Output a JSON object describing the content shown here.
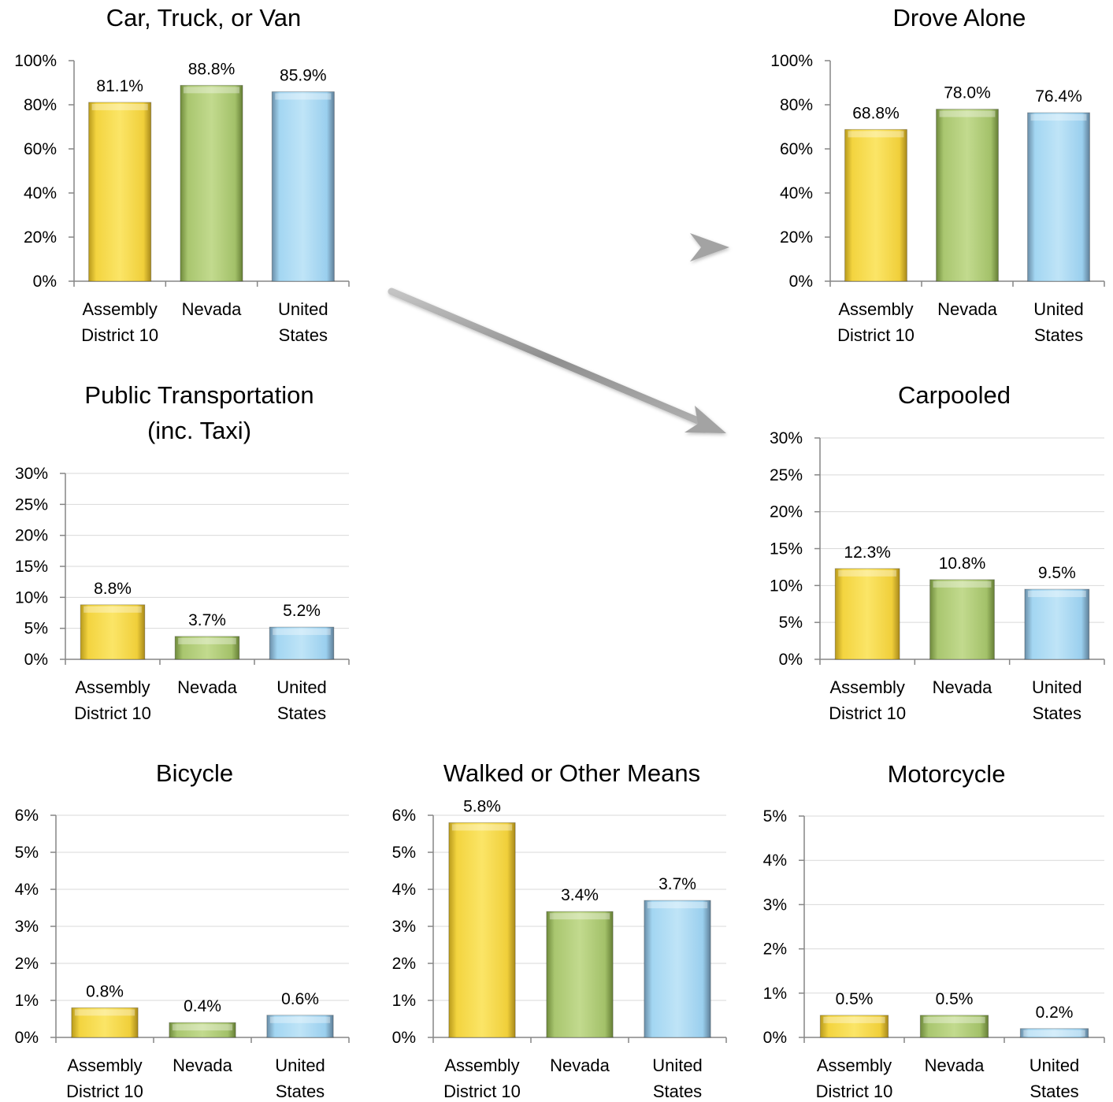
{
  "colors": {
    "yellow": "#f6d33b",
    "green": "#a6c46a",
    "blue": "#9bd1ef",
    "arrow": "#9a9a9a",
    "grid": "#d9d9d9",
    "axis": "#868686"
  },
  "chart_data": [
    {
      "type": "bar",
      "title": [
        "Car, Truck, or Van"
      ],
      "categories": [
        [
          "Assembly",
          "District 10"
        ],
        [
          "Nevada"
        ],
        [
          "United",
          "States"
        ]
      ],
      "values": [
        81.1,
        88.8,
        85.9
      ],
      "value_labels": [
        "81.1%",
        "88.8%",
        "85.9%"
      ],
      "yticks": [
        "0%",
        "20%",
        "40%",
        "60%",
        "80%",
        "100%"
      ],
      "ylim": [
        0,
        100
      ],
      "grid": false
    },
    {
      "type": "bar",
      "title": [
        "Drove Alone"
      ],
      "categories": [
        [
          "Assembly",
          "District 10"
        ],
        [
          "Nevada"
        ],
        [
          "United",
          "States"
        ]
      ],
      "values": [
        68.8,
        78.0,
        76.4
      ],
      "value_labels": [
        "68.8%",
        "78.0%",
        "76.4%"
      ],
      "yticks": [
        "0%",
        "20%",
        "40%",
        "60%",
        "80%",
        "100%"
      ],
      "ylim": [
        0,
        100
      ],
      "grid": false
    },
    {
      "type": "bar",
      "title": [
        "Public Transportation",
        "(inc. Taxi)"
      ],
      "categories": [
        [
          "Assembly",
          "District 10"
        ],
        [
          "Nevada"
        ],
        [
          "United",
          "States"
        ]
      ],
      "values": [
        8.8,
        3.7,
        5.2
      ],
      "value_labels": [
        "8.8%",
        "3.7%",
        "5.2%"
      ],
      "yticks": [
        "0%",
        "5%",
        "10%",
        "15%",
        "20%",
        "25%",
        "30%"
      ],
      "ylim": [
        0,
        30
      ],
      "grid": true
    },
    {
      "type": "bar",
      "title": [
        "Carpooled"
      ],
      "categories": [
        [
          "Assembly",
          "District 10"
        ],
        [
          "Nevada"
        ],
        [
          "United",
          "States"
        ]
      ],
      "values": [
        12.3,
        10.8,
        9.5
      ],
      "value_labels": [
        "12.3%",
        "10.8%",
        "9.5%"
      ],
      "yticks": [
        "0%",
        "5%",
        "10%",
        "15%",
        "20%",
        "25%",
        "30%"
      ],
      "ylim": [
        0,
        30
      ],
      "grid": true
    },
    {
      "type": "bar",
      "title": [
        "Bicycle"
      ],
      "categories": [
        [
          "Assembly",
          "District 10"
        ],
        [
          "Nevada"
        ],
        [
          "United",
          "States"
        ]
      ],
      "values": [
        0.8,
        0.4,
        0.6
      ],
      "value_labels": [
        "0.8%",
        "0.4%",
        "0.6%"
      ],
      "yticks": [
        "0%",
        "1%",
        "2%",
        "3%",
        "4%",
        "5%",
        "6%"
      ],
      "ylim": [
        0,
        6
      ],
      "grid": true
    },
    {
      "type": "bar",
      "title": [
        "Walked or Other Means"
      ],
      "categories": [
        [
          "Assembly",
          "District 10"
        ],
        [
          "Nevada"
        ],
        [
          "United",
          "States"
        ]
      ],
      "values": [
        5.8,
        3.4,
        3.7
      ],
      "value_labels": [
        "5.8%",
        "3.4%",
        "3.7%"
      ],
      "yticks": [
        "0%",
        "1%",
        "2%",
        "3%",
        "4%",
        "5%",
        "6%"
      ],
      "ylim": [
        0,
        6
      ],
      "grid": true
    },
    {
      "type": "bar",
      "title": [
        "Motorcycle"
      ],
      "categories": [
        [
          "Assembly",
          "District 10"
        ],
        [
          "Nevada"
        ],
        [
          "United",
          "States"
        ]
      ],
      "values": [
        0.5,
        0.5,
        0.2
      ],
      "value_labels": [
        "0.5%",
        "0.5%",
        "0.2%"
      ],
      "yticks": [
        "0%",
        "1%",
        "2%",
        "3%",
        "4%",
        "5%"
      ],
      "ylim": [
        0,
        5
      ],
      "grid": true
    }
  ]
}
